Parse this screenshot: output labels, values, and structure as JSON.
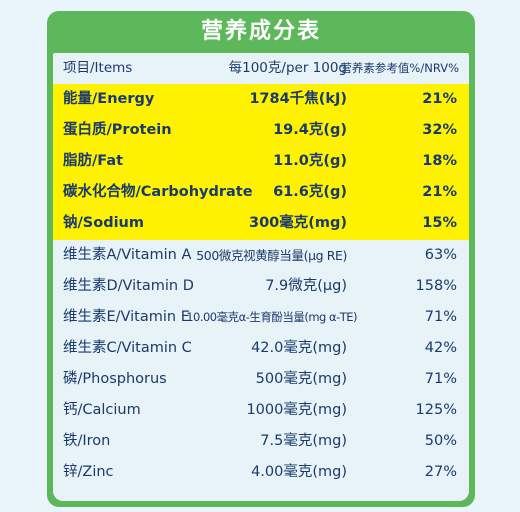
{
  "title": "营养成分表",
  "header": {
    "name": "项目/Items",
    "amount": "每100克/per 100g",
    "nrv": "营养素参考值%/NRV%"
  },
  "rows": [
    {
      "name": "能量/Energy",
      "amount": "1784千焦(kJ)",
      "nrv": "21%"
    },
    {
      "name": "蛋白质/Protein",
      "amount": "19.4克(g)",
      "nrv": "32%"
    },
    {
      "name": "脂肪/Fat",
      "amount": "11.0克(g)",
      "nrv": "18%"
    },
    {
      "name": "碳水化合物/Carbohydrate",
      "amount": "61.6克(g)",
      "nrv": "21%"
    },
    {
      "name": "钠/Sodium",
      "amount": "300毫克(mg)",
      "nrv": "15%"
    },
    {
      "name": "维生素A/Vitamin A",
      "amount": "500微克视黄醇当量(μg RE)",
      "nrv": "63%"
    },
    {
      "name": "维生素D/Vitamin D",
      "amount": "7.9微克(μg)",
      "nrv": "158%"
    },
    {
      "name": "维生素E/Vitamin E",
      "amount": "10.00毫克α-生育酚当量(mg α-TE)",
      "nrv": "71%"
    },
    {
      "name": "维生素C/Vitamin C",
      "amount": "42.0毫克(mg)",
      "nrv": "42%"
    },
    {
      "name": "磷/Phosphorus",
      "amount": "500毫克(mg)",
      "nrv": "71%"
    },
    {
      "name": "钙/Calcium",
      "amount": "1000毫克(mg)",
      "nrv": "125%"
    },
    {
      "name": "铁/Iron",
      "amount": "7.5毫克(mg)",
      "nrv": "50%"
    },
    {
      "name": "锌/Zinc",
      "amount": "4.00毫克(mg)",
      "nrv": "27%"
    }
  ],
  "colors": {
    "frame": "#5cb85a",
    "highlight": "#fef200",
    "text": "#1a3a6e",
    "background": "#e8f3f8"
  }
}
